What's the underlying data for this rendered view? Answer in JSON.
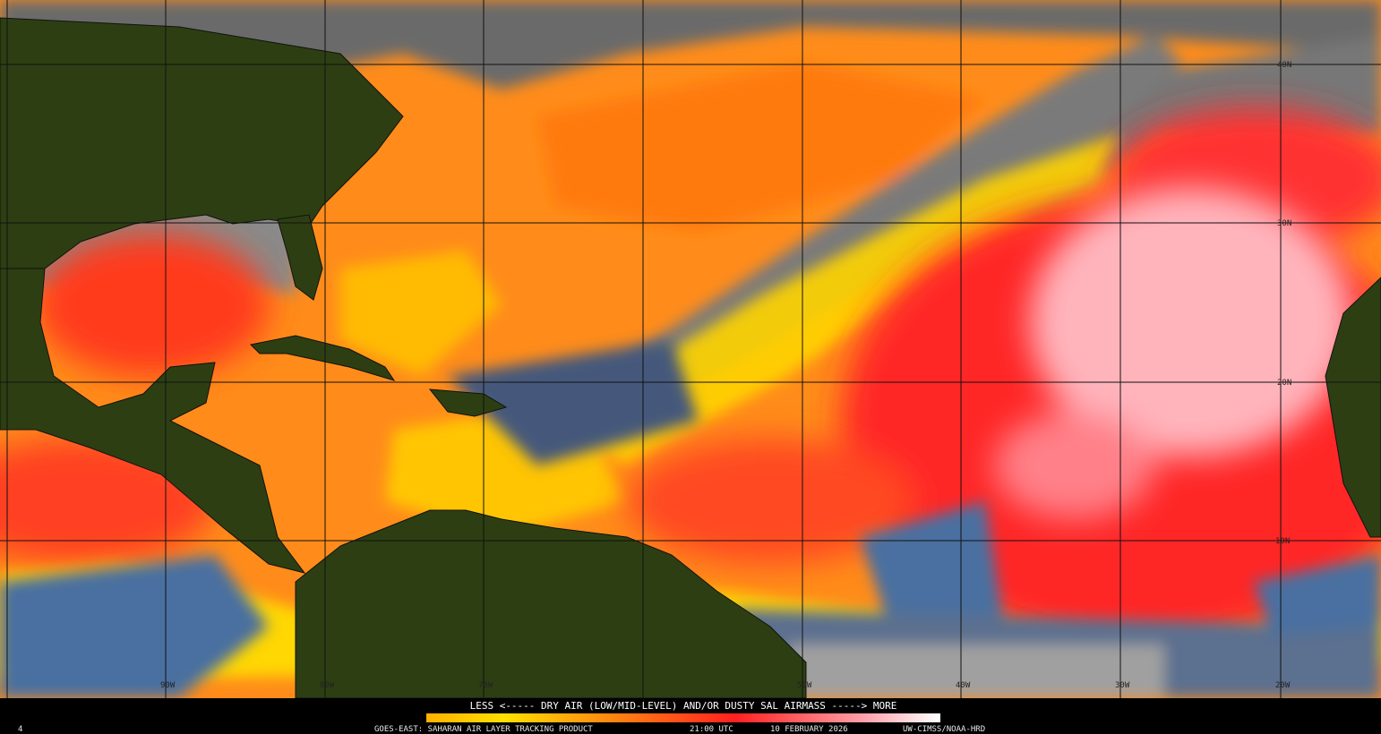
{
  "map": {
    "lat_labels": [
      "40N",
      "30N",
      "20N",
      "10N"
    ],
    "lon_labels": [
      "90W",
      "80W",
      "70W",
      "50W",
      "40W",
      "30W",
      "20W"
    ]
  },
  "legend": {
    "caption": "LESS <----- DRY AIR (LOW/MID-LEVEL) AND/OR DUSTY SAL AIRMASS -----> MORE"
  },
  "footer": {
    "frame": "4",
    "product": "GOES-EAST: SAHARAN AIR LAYER TRACKING PRODUCT",
    "time": "21:00 UTC",
    "date": "10 FEBRUARY 2026",
    "credit": "UW-CIMSS/NOAA-HRD"
  }
}
